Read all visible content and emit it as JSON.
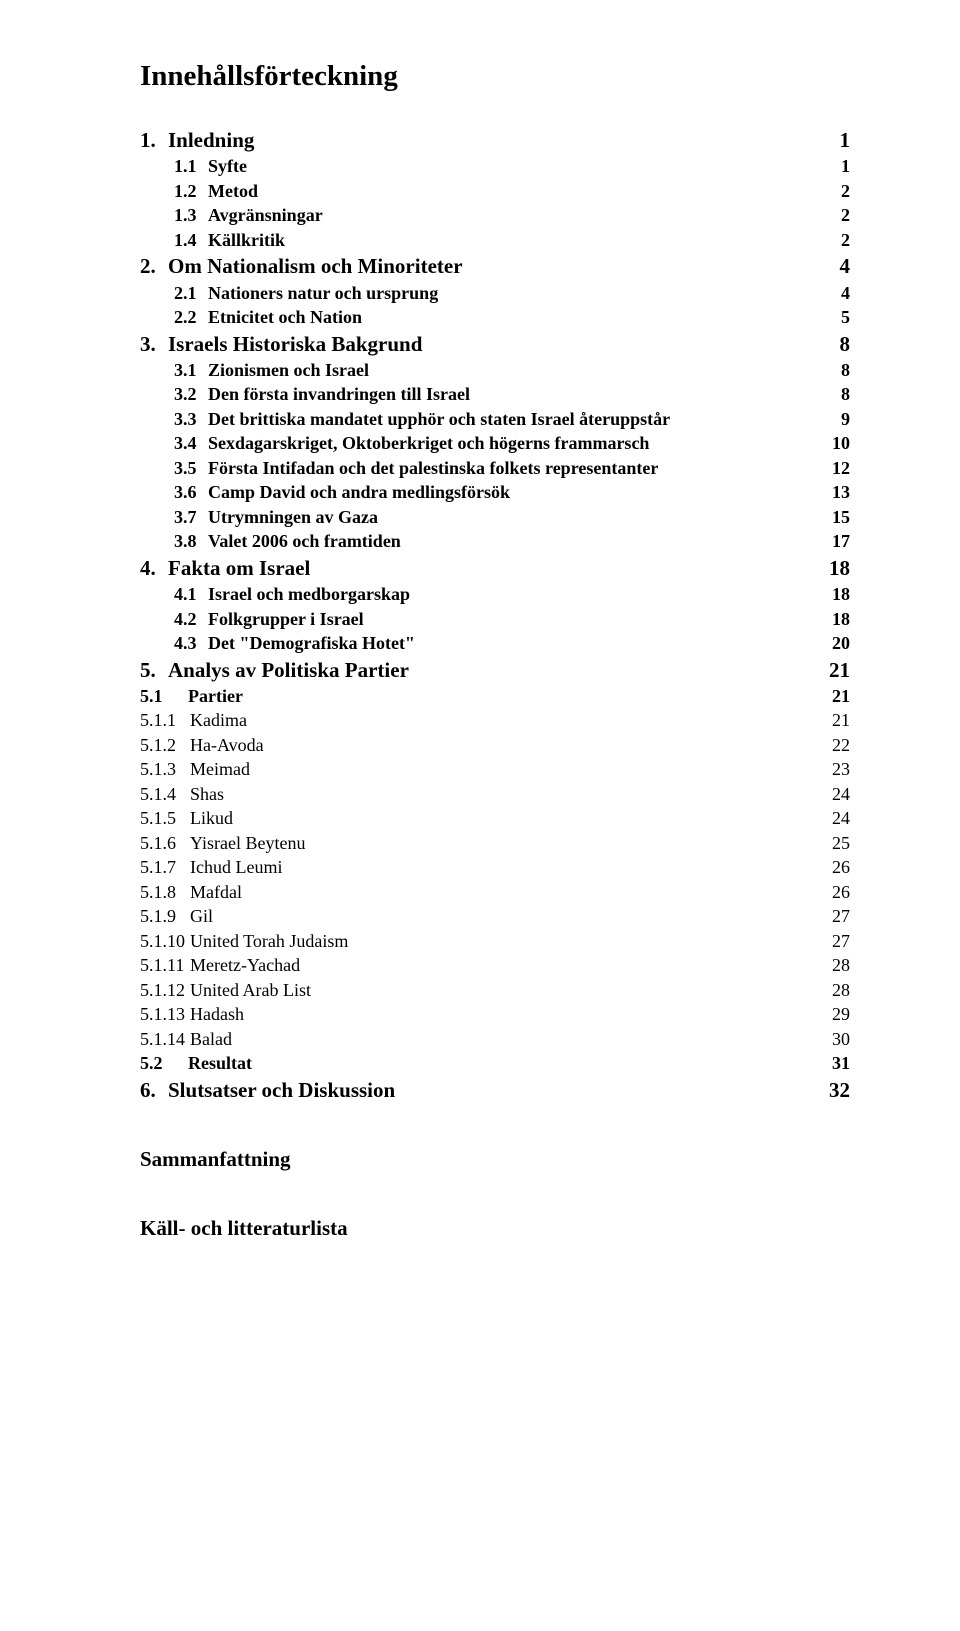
{
  "title": "Innehållsförteckning",
  "toc": [
    {
      "cls": "lvl1",
      "indent": "",
      "num": "1.",
      "text": "Inledning",
      "page": "1",
      "pcls": "big"
    },
    {
      "cls": "lvl2",
      "indent": "indent1",
      "num": "1.1",
      "text": "Syfte",
      "page": "1",
      "pcls": "bold"
    },
    {
      "cls": "lvl2",
      "indent": "indent1",
      "num": "1.2",
      "text": "Metod",
      "page": "2",
      "pcls": "bold"
    },
    {
      "cls": "lvl2",
      "indent": "indent1",
      "num": "1.3",
      "text": "Avgränsningar",
      "page": "2",
      "pcls": "bold"
    },
    {
      "cls": "lvl2",
      "indent": "indent1",
      "num": "1.4",
      "text": "Källkritik",
      "page": "2",
      "pcls": "bold"
    },
    {
      "cls": "lvl1",
      "indent": "",
      "num": "2.",
      "text": "Om Nationalism och Minoriteter",
      "page": "4",
      "pcls": "big"
    },
    {
      "cls": "lvl2",
      "indent": "indent1",
      "num": "2.1",
      "text": "Nationers natur och ursprung",
      "page": "4",
      "pcls": "bold"
    },
    {
      "cls": "lvl2",
      "indent": "indent1",
      "num": "2.2",
      "text": "Etnicitet och Nation",
      "page": "5",
      "pcls": "bold"
    },
    {
      "cls": "lvl1",
      "indent": "",
      "num": "3.",
      "text": "Israels Historiska Bakgrund",
      "page": "8",
      "pcls": "big"
    },
    {
      "cls": "lvl2",
      "indent": "indent1",
      "num": "3.1",
      "text": "Zionismen och Israel",
      "page": "8",
      "pcls": "bold"
    },
    {
      "cls": "lvl2",
      "indent": "indent1",
      "num": "3.2",
      "text": "Den första invandringen till Israel",
      "page": "8",
      "pcls": "bold"
    },
    {
      "cls": "lvl2",
      "indent": "indent1",
      "num": "3.3",
      "text": "Det brittiska mandatet upphör och staten Israel återuppstår",
      "page": "9",
      "pcls": "bold"
    },
    {
      "cls": "lvl2",
      "indent": "indent1",
      "num": "3.4",
      "text": "Sexdagarskriget, Oktoberkriget och högerns frammarsch",
      "page": "10",
      "pcls": "bold"
    },
    {
      "cls": "lvl2",
      "indent": "indent1",
      "num": "3.5",
      "text": "Första Intifadan och det palestinska folkets representanter",
      "page": "12",
      "pcls": "bold"
    },
    {
      "cls": "lvl2",
      "indent": "indent1",
      "num": "3.6",
      "text": "Camp David och andra medlingsförsök",
      "page": "13",
      "pcls": "bold"
    },
    {
      "cls": "lvl2",
      "indent": "indent1",
      "num": "3.7",
      "text": "Utrymningen av Gaza",
      "page": "15",
      "pcls": "bold"
    },
    {
      "cls": "lvl2",
      "indent": "indent1",
      "num": "3.8",
      "text": "Valet 2006 och framtiden",
      "page": "17",
      "pcls": "bold"
    },
    {
      "cls": "lvl1",
      "indent": "",
      "num": "4.",
      "text": "Fakta om Israel",
      "page": "18",
      "pcls": "big"
    },
    {
      "cls": "lvl2",
      "indent": "indent1",
      "num": "4.1",
      "text": "Israel och medborgarskap",
      "page": "18",
      "pcls": "bold"
    },
    {
      "cls": "lvl2",
      "indent": "indent1",
      "num": "4.2",
      "text": "Folkgrupper i Israel",
      "page": "18",
      "pcls": "bold"
    },
    {
      "cls": "lvl2",
      "indent": "indent1",
      "num": "4.3",
      "text": "Det \"Demografiska Hotet\"",
      "page": "20",
      "pcls": "bold"
    },
    {
      "cls": "lvl1",
      "indent": "",
      "num": "5.",
      "text": "Analys av Politiska Partier",
      "page": "21",
      "pcls": "big"
    },
    {
      "cls": "lvl2 wide",
      "indent": "indent-flush",
      "num": "5.1",
      "text": "Partier",
      "page": "21",
      "pcls": "bold"
    },
    {
      "cls": "lvl2plain",
      "indent": "indent-flush",
      "num": "5.1.1",
      "text": "Kadima",
      "page": "21",
      "pcls": ""
    },
    {
      "cls": "lvl2plain",
      "indent": "indent-flush",
      "num": "5.1.2",
      "text": "Ha-Avoda",
      "page": "22",
      "pcls": ""
    },
    {
      "cls": "lvl2plain",
      "indent": "indent-flush",
      "num": "5.1.3",
      "text": "Meimad",
      "page": "23",
      "pcls": ""
    },
    {
      "cls": "lvl2plain",
      "indent": "indent-flush",
      "num": "5.1.4",
      "text": "Shas",
      "page": "24",
      "pcls": ""
    },
    {
      "cls": "lvl2plain",
      "indent": "indent-flush",
      "num": "5.1.5",
      "text": "Likud",
      "page": "24",
      "pcls": ""
    },
    {
      "cls": "lvl2plain",
      "indent": "indent-flush",
      "num": "5.1.6",
      "text": "Yisrael Beytenu",
      "page": "25",
      "pcls": ""
    },
    {
      "cls": "lvl2plain",
      "indent": "indent-flush",
      "num": "5.1.7",
      "text": "Ichud Leumi",
      "page": "26",
      "pcls": ""
    },
    {
      "cls": "lvl2plain",
      "indent": "indent-flush",
      "num": "5.1.8",
      "text": "Mafdal",
      "page": "26",
      "pcls": ""
    },
    {
      "cls": "lvl2plain",
      "indent": "indent-flush",
      "num": "5.1.9",
      "text": "Gil",
      "page": "27",
      "pcls": ""
    },
    {
      "cls": "lvl2plain",
      "indent": "indent-flush",
      "num": "5.1.10",
      "text": "United Torah Judaism",
      "page": "27",
      "pcls": ""
    },
    {
      "cls": "lvl2plain",
      "indent": "indent-flush",
      "num": "5.1.11",
      "text": "Meretz-Yachad",
      "page": "28",
      "pcls": ""
    },
    {
      "cls": "lvl2plain",
      "indent": "indent-flush",
      "num": "5.1.12",
      "text": "United Arab List",
      "page": "28",
      "pcls": ""
    },
    {
      "cls": "lvl2plain",
      "indent": "indent-flush",
      "num": "5.1.13",
      "text": "Hadash",
      "page": "29",
      "pcls": ""
    },
    {
      "cls": "lvl2plain",
      "indent": "indent-flush",
      "num": "5.1.14",
      "text": "Balad",
      "page": "30",
      "pcls": ""
    },
    {
      "cls": "lvl2 wide",
      "indent": "indent-flush",
      "num": "5.2",
      "text": "Resultat",
      "page": "31",
      "pcls": "bold"
    },
    {
      "cls": "lvl1",
      "indent": "",
      "num": "6.",
      "text": "Slutsatser och Diskussion",
      "page": "32",
      "pcls": "big"
    }
  ],
  "tail": [
    "Sammanfattning",
    "Käll- och litteraturlista"
  ]
}
